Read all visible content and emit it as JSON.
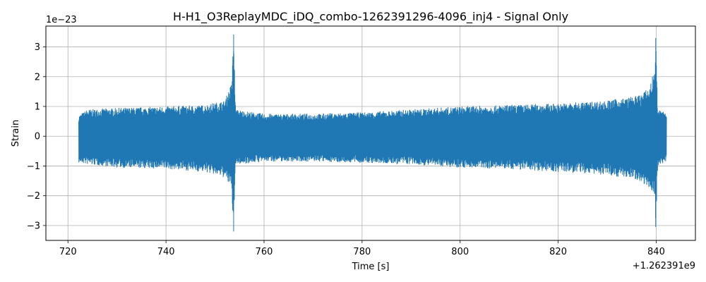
{
  "chart_data": {
    "type": "line",
    "title": "H-H1_O3ReplayMDC_iDQ_combo-1262391296-4096_inj4 - Signal Only",
    "xlabel": "Time [s]",
    "ylabel": "Strain",
    "x_offset_text": "+1.262391e9",
    "y_scale_text": "1e−23",
    "xlim": [
      715.5,
      848.0
    ],
    "ylim": [
      -3.5,
      3.7
    ],
    "x_ticks": [
      720,
      740,
      760,
      780,
      800,
      820,
      840
    ],
    "x_tick_labels": [
      "720",
      "740",
      "760",
      "780",
      "800",
      "820",
      "840"
    ],
    "y_ticks": [
      3,
      2,
      1,
      0,
      -1,
      -2,
      -3
    ],
    "y_tick_labels": [
      "3",
      "2",
      "1",
      "0",
      "−1",
      "−2",
      "−3"
    ],
    "grid": true,
    "line_color": "#1f77b4",
    "series": [
      {
        "x_range": [
          722.2,
          842.1
        ],
        "envelope_upper": [
          [
            722.2,
            0.7
          ],
          [
            724,
            0.9
          ],
          [
            730,
            0.95
          ],
          [
            740,
            1.0
          ],
          [
            748,
            1.05
          ],
          [
            752,
            1.2
          ],
          [
            753.4,
            1.8
          ],
          [
            753.8,
            3.42
          ],
          [
            754.2,
            0.9
          ],
          [
            760,
            0.75
          ],
          [
            770,
            0.75
          ],
          [
            780,
            0.8
          ],
          [
            790,
            0.9
          ],
          [
            800,
            1.0
          ],
          [
            810,
            1.05
          ],
          [
            820,
            1.1
          ],
          [
            830,
            1.2
          ],
          [
            836,
            1.35
          ],
          [
            838.5,
            1.6
          ],
          [
            839.6,
            2.2
          ],
          [
            839.9,
            3.3
          ],
          [
            840.3,
            0.9
          ],
          [
            842.1,
            0.8
          ]
        ],
        "envelope_lower": [
          [
            722.2,
            -0.9
          ],
          [
            724,
            -0.95
          ],
          [
            730,
            -1.05
          ],
          [
            740,
            -1.1
          ],
          [
            748,
            -1.2
          ],
          [
            752,
            -1.4
          ],
          [
            753.4,
            -1.8
          ],
          [
            753.8,
            -3.2
          ],
          [
            754.2,
            -0.95
          ],
          [
            760,
            -0.85
          ],
          [
            770,
            -0.85
          ],
          [
            780,
            -0.9
          ],
          [
            790,
            -0.95
          ],
          [
            800,
            -1.05
          ],
          [
            810,
            -1.1
          ],
          [
            820,
            -1.2
          ],
          [
            830,
            -1.3
          ],
          [
            836,
            -1.45
          ],
          [
            838.5,
            -1.7
          ],
          [
            839.6,
            -2.0
          ],
          [
            839.9,
            -3.05
          ],
          [
            840.3,
            -1.0
          ],
          [
            842.1,
            -0.85
          ]
        ]
      }
    ]
  }
}
